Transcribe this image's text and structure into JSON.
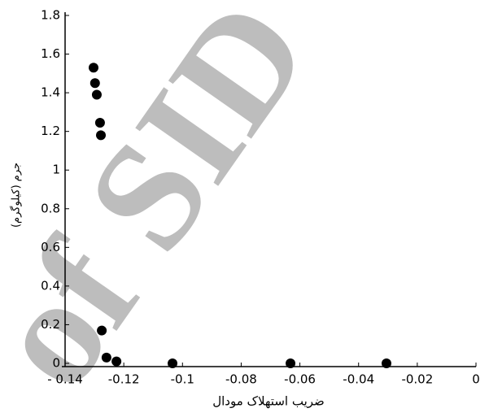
{
  "chart_data": {
    "type": "scatter",
    "x_label": "ضریب استهلاک مودال",
    "y_label": "جرم (کیلوگرم)",
    "watermark": "of SID",
    "color": "#000000",
    "x": [
      -0.1303,
      -0.1298,
      -0.1292,
      -0.1281,
      -0.1278,
      -0.1275,
      -0.1259,
      -0.1225,
      -0.1034,
      -0.0632,
      -0.0305
    ],
    "values": [
      1.53,
      1.45,
      1.39,
      1.245,
      1.18,
      0.17,
      0.03,
      0.01,
      0,
      0,
      0
    ],
    "xlim": [
      -0.14,
      0
    ],
    "ylim": [
      0,
      1.8
    ],
    "xticks": [
      {
        "value": -0.14,
        "label": "- 0.14"
      },
      -0.12,
      -0.1,
      -0.08,
      -0.06,
      -0.04,
      -0.02,
      0
    ],
    "yticks": [
      0,
      0.2,
      0.4,
      0.6,
      0.8,
      1,
      1.2,
      1.4,
      1.6,
      1.8
    ]
  }
}
